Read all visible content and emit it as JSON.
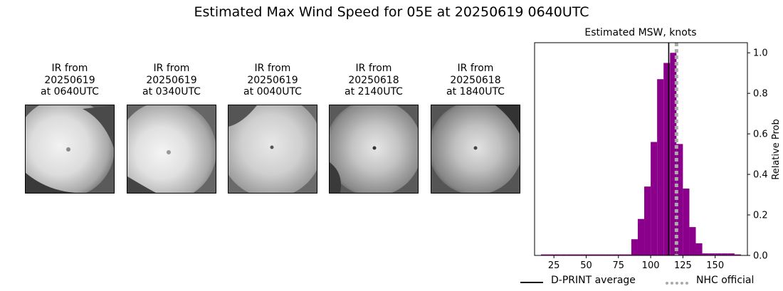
{
  "suptitle": "Estimated Max Wind Speed for 05E at 20250619 0640UTC",
  "ir_panels": [
    {
      "title": "IR from\n20250619\nat 0640UTC"
    },
    {
      "title": "IR from\n20250619\nat 0340UTC"
    },
    {
      "title": "IR from\n20250619\nat 0040UTC"
    },
    {
      "title": "IR from\n20250618\nat 2140UTC"
    },
    {
      "title": "IR from\n20250618\nat 1840UTC"
    }
  ],
  "chart_data": {
    "type": "bar",
    "title": "Estimated MSW, knots",
    "xlabel": "",
    "ylabel": "Relative Prob",
    "xlim": [
      10,
      175
    ],
    "ylim": [
      0,
      1.05
    ],
    "xticks": [
      25,
      50,
      75,
      100,
      125,
      150
    ],
    "yticks": [
      "0.0",
      "0.2",
      "0.4",
      "0.6",
      "0.8",
      "1.0"
    ],
    "bin_width": 5,
    "bins": [
      {
        "x": 15,
        "value": 0.005
      },
      {
        "x": 20,
        "value": 0.005
      },
      {
        "x": 25,
        "value": 0.005
      },
      {
        "x": 30,
        "value": 0.005
      },
      {
        "x": 35,
        "value": 0.005
      },
      {
        "x": 40,
        "value": 0.005
      },
      {
        "x": 45,
        "value": 0.005
      },
      {
        "x": 50,
        "value": 0.005
      },
      {
        "x": 55,
        "value": 0.005
      },
      {
        "x": 60,
        "value": 0.005
      },
      {
        "x": 65,
        "value": 0.005
      },
      {
        "x": 70,
        "value": 0.005
      },
      {
        "x": 75,
        "value": 0.005
      },
      {
        "x": 80,
        "value": 0.005
      },
      {
        "x": 85,
        "value": 0.08
      },
      {
        "x": 90,
        "value": 0.18
      },
      {
        "x": 95,
        "value": 0.34
      },
      {
        "x": 100,
        "value": 0.56
      },
      {
        "x": 105,
        "value": 0.87
      },
      {
        "x": 110,
        "value": 0.95
      },
      {
        "x": 115,
        "value": 1.0
      },
      {
        "x": 120,
        "value": 0.55
      },
      {
        "x": 125,
        "value": 0.33
      },
      {
        "x": 130,
        "value": 0.14
      },
      {
        "x": 135,
        "value": 0.06
      },
      {
        "x": 140,
        "value": 0.01
      },
      {
        "x": 145,
        "value": 0.01
      },
      {
        "x": 150,
        "value": 0.01
      },
      {
        "x": 155,
        "value": 0.01
      },
      {
        "x": 160,
        "value": 0.01
      },
      {
        "x": 165,
        "value": 0.005
      }
    ],
    "bar_color": "#8b008b",
    "dprint_average": 114,
    "nhc_official": 120,
    "legend": [
      {
        "label": "D-PRINT average",
        "color": "#000000",
        "style": "solid"
      },
      {
        "label": "NHC official",
        "color": "#aaaaaa",
        "style": "dotted"
      }
    ],
    "legend_position": "bottom"
  }
}
